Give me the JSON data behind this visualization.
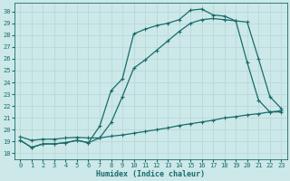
{
  "title": "",
  "xlabel": "Humidex (Indice chaleur)",
  "ylabel": "",
  "bg_color": "#cce8e8",
  "line_color": "#1a6b6b",
  "grid_color": "#b8d8d8",
  "xlim": [
    -0.5,
    23.5
  ],
  "ylim": [
    17.5,
    30.7
  ],
  "xticks": [
    0,
    1,
    2,
    3,
    4,
    5,
    6,
    7,
    8,
    9,
    10,
    11,
    12,
    13,
    14,
    15,
    16,
    17,
    18,
    19,
    20,
    21,
    22,
    23
  ],
  "yticks": [
    18,
    19,
    20,
    21,
    22,
    23,
    24,
    25,
    26,
    27,
    28,
    29,
    30
  ],
  "line1_x": [
    0,
    1,
    2,
    3,
    4,
    5,
    6,
    7,
    8,
    9,
    10,
    11,
    12,
    13,
    14,
    15,
    16,
    17,
    18,
    19,
    20,
    21,
    22,
    23
  ],
  "line1_y": [
    19.1,
    18.5,
    18.8,
    18.8,
    18.9,
    19.1,
    18.9,
    20.3,
    23.3,
    24.3,
    28.1,
    28.5,
    28.8,
    29.0,
    29.3,
    30.1,
    30.2,
    29.7,
    29.6,
    29.2,
    25.7,
    22.5,
    21.5,
    21.5
  ],
  "line2_x": [
    0,
    1,
    2,
    3,
    4,
    5,
    6,
    7,
    8,
    9,
    10,
    11,
    12,
    13,
    14,
    15,
    16,
    17,
    18,
    19,
    20,
    21,
    22,
    23
  ],
  "line2_y": [
    19.1,
    18.5,
    18.8,
    18.8,
    18.9,
    19.1,
    18.9,
    19.3,
    20.6,
    22.8,
    25.2,
    25.9,
    26.7,
    27.5,
    28.3,
    29.0,
    29.3,
    29.4,
    29.3,
    29.2,
    29.1,
    26.0,
    22.8,
    21.8
  ],
  "line3_x": [
    0,
    1,
    2,
    3,
    4,
    5,
    6,
    7,
    8,
    9,
    10,
    11,
    12,
    13,
    14,
    15,
    16,
    17,
    18,
    19,
    20,
    21,
    22,
    23
  ],
  "line3_y": [
    19.4,
    19.1,
    19.2,
    19.2,
    19.3,
    19.35,
    19.3,
    19.3,
    19.45,
    19.55,
    19.7,
    19.85,
    20.0,
    20.15,
    20.35,
    20.5,
    20.65,
    20.8,
    21.0,
    21.1,
    21.25,
    21.35,
    21.5,
    21.6
  ],
  "marker": "+",
  "markersize": 3.5,
  "linewidth": 0.9,
  "font_family": "monospace",
  "tick_fontsize": 5.0,
  "xlabel_fontsize": 6.0
}
